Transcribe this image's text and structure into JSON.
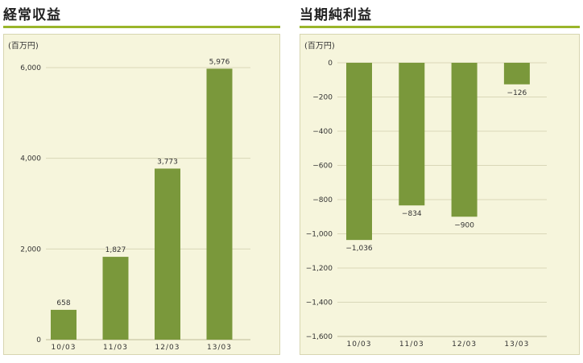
{
  "chart_data": [
    {
      "type": "bar",
      "title": "経常収益",
      "unit": "(百万円)",
      "categories": [
        "10/03",
        "11/03",
        "12/03",
        "13/03"
      ],
      "values": [
        658,
        1827,
        3773,
        5976
      ],
      "value_labels": [
        "658",
        "1,827",
        "3,773",
        "5,976"
      ],
      "ylim": [
        0,
        6000
      ],
      "yticks": [
        0,
        2000,
        4000,
        6000
      ],
      "ytick_labels": [
        "0",
        "2,000",
        "4,000",
        "6,000"
      ],
      "grid": true,
      "bar_color": "#7a983b"
    },
    {
      "type": "bar",
      "title": "当期純利益",
      "unit": "(百万円)",
      "categories": [
        "10/03",
        "11/03",
        "12/03",
        "13/03"
      ],
      "values": [
        -1036,
        -834,
        -900,
        -126
      ],
      "value_labels": [
        "−1,036",
        "−834",
        "−900",
        "−126"
      ],
      "ylim": [
        -1600,
        0
      ],
      "yticks": [
        0,
        -200,
        -400,
        -600,
        -800,
        -1000,
        -1200,
        -1400,
        -1600
      ],
      "ytick_labels": [
        "0",
        "−200",
        "−400",
        "−600",
        "−800",
        "−1,000",
        "−1,200",
        "−1,400",
        "−1,600"
      ],
      "grid": true,
      "bar_color": "#7a983b"
    }
  ]
}
